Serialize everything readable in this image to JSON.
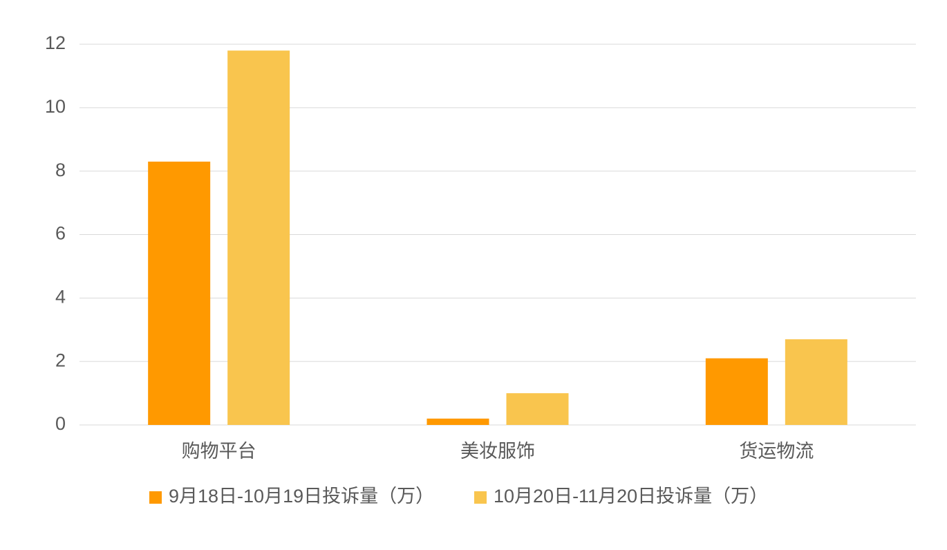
{
  "chart_data": {
    "type": "bar",
    "categories": [
      "购物平台",
      "美妆服饰",
      "货运物流"
    ],
    "series": [
      {
        "name": "9月18日-10月19日投诉量（万）",
        "color": "#ff9900",
        "values": [
          8.3,
          0.2,
          2.1
        ]
      },
      {
        "name": "10月20日-11月20日投诉量（万）",
        "color": "#f9c54e",
        "values": [
          11.8,
          1.0,
          2.7
        ]
      }
    ],
    "ylim": [
      0,
      12
    ],
    "yticks": [
      0,
      2,
      4,
      6,
      8,
      10,
      12
    ],
    "grid": true,
    "legend": "bottom"
  }
}
